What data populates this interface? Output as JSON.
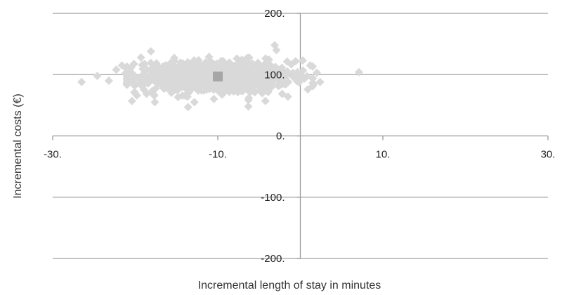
{
  "chart_data": {
    "type": "scatter",
    "xlabel": "Incremental length of stay in minutes",
    "ylabel": "Incremental costs (€)",
    "xlim": [
      -30,
      30
    ],
    "ylim": [
      -200,
      200
    ],
    "x_ticks": [
      -30,
      -10,
      10,
      30
    ],
    "x_tick_labels": [
      "-30.",
      "-10.",
      "10.",
      "30."
    ],
    "y_ticks": [
      200,
      100,
      0,
      -100,
      -200
    ],
    "y_tick_labels": [
      "200.",
      "100.",
      "0.",
      "-100.",
      "-200."
    ],
    "grid": "horizontal",
    "legend": "none",
    "point_color": "#d9d9d9",
    "mean_color": "#a6a6a6",
    "mean_point": {
      "x": -10,
      "y": 97
    },
    "outlier_points": [
      {
        "x": -26.5,
        "y": 88
      },
      {
        "x": -24.6,
        "y": 98
      },
      {
        "x": -23.2,
        "y": 90
      },
      {
        "x": -22.3,
        "y": 108
      },
      {
        "x": -21.6,
        "y": 115
      },
      {
        "x": -21.2,
        "y": 102
      },
      {
        "x": -20.4,
        "y": 57
      },
      {
        "x": -19.3,
        "y": 128
      },
      {
        "x": -18.1,
        "y": 138
      },
      {
        "x": -13.6,
        "y": 47
      },
      {
        "x": -6.3,
        "y": 48
      },
      {
        "x": -3.1,
        "y": 148
      },
      {
        "x": 0.3,
        "y": 123
      },
      {
        "x": 0.9,
        "y": 76
      },
      {
        "x": 1.6,
        "y": 84
      },
      {
        "x": 2.4,
        "y": 88
      },
      {
        "x": 2.0,
        "y": 103
      },
      {
        "x": 1.2,
        "y": 115
      },
      {
        "x": 7.1,
        "y": 104
      },
      {
        "x": -19.8,
        "y": 66
      },
      {
        "x": -1.5,
        "y": 64
      }
    ],
    "cloud": {
      "description": "dense cloud of simulated bootstrap replicates",
      "count": 1000,
      "x_mean": -10.5,
      "x_sd": 4.6,
      "y_mean": 96,
      "y_sd": 13,
      "x_range": [
        -21,
        1.5
      ],
      "y_range": [
        55,
        140
      ]
    }
  }
}
